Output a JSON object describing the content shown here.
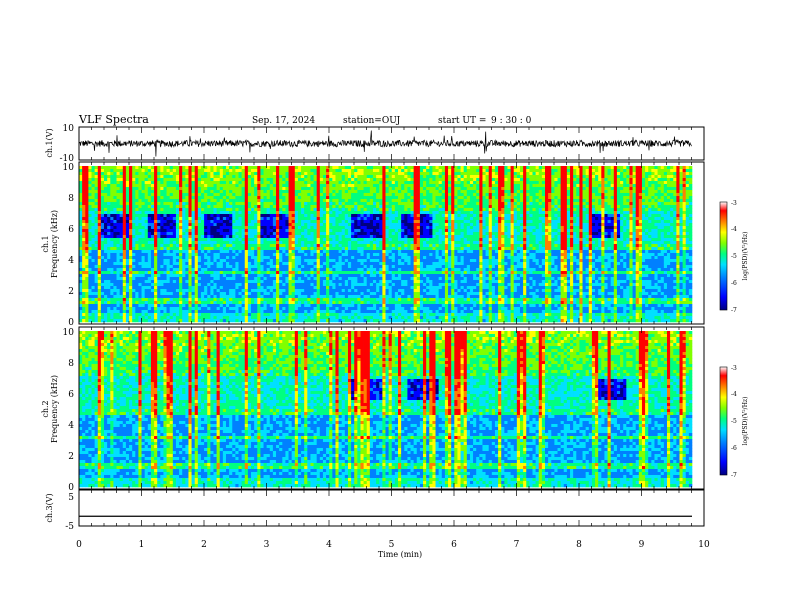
{
  "header": {
    "title": "VLF Spectra",
    "date": "Sep. 17, 2024",
    "station": "station=OUJ",
    "start_label": "start UT =",
    "start_time": "9 : 30 : 0"
  },
  "axes": {
    "x_label": "Time (min)",
    "ch1_wave_label": "ch.1(V)",
    "ch1_spec_label_a": "ch.1",
    "ch1_spec_label_b": "Frequency (kHz)",
    "ch2_spec_label_a": "ch.2",
    "ch2_spec_label_b": "Frequency (kHz)",
    "ch3_wave_label": "ch.3(V)",
    "colorbar_label": "log(PSD)(V²/Hz)"
  },
  "chart_data": [
    {
      "type": "line",
      "name": "ch1-waveform",
      "xlim": [
        0,
        10
      ],
      "ylim": [
        -10,
        10
      ],
      "x_ticks": [
        "0",
        "1",
        "2",
        "3",
        "4",
        "5",
        "6",
        "7",
        "8",
        "9",
        "10"
      ],
      "y_ticks": [
        "10",
        "-10"
      ],
      "baseline": 0,
      "noise_amplitude": 2
    },
    {
      "type": "heatmap",
      "name": "ch1-spectrogram",
      "xlim": [
        0,
        9.8
      ],
      "ylim": [
        0,
        10
      ],
      "y_ticks": [
        "0",
        "2",
        "4",
        "6",
        "8",
        "10"
      ],
      "colorbar": {
        "min": -7,
        "max": -3,
        "ticks": [
          "-3",
          "-4",
          "-5",
          "-6",
          "-7"
        ]
      },
      "dark_band_khz": [
        5.3,
        7.0
      ],
      "dark_band_times_min": [
        0.6,
        1.3,
        2.2,
        3.1,
        4.6,
        5.4,
        8.4
      ]
    },
    {
      "type": "heatmap",
      "name": "ch2-spectrogram",
      "xlim": [
        0,
        9.8
      ],
      "ylim": [
        0,
        10
      ],
      "y_ticks": [
        "0",
        "2",
        "4",
        "6",
        "8",
        "10"
      ],
      "colorbar": {
        "min": -7,
        "max": -3,
        "ticks": [
          "-3",
          "-4",
          "-5",
          "-6",
          "-7"
        ]
      },
      "dark_band_khz": [
        5.5,
        7.0
      ],
      "dark_band_times_min": [
        4.6,
        5.5,
        8.5
      ]
    },
    {
      "type": "line",
      "name": "ch3-waveform",
      "xlim": [
        0,
        10
      ],
      "ylim": [
        -5,
        5
      ],
      "y_ticks": [
        "5",
        "-5"
      ],
      "baseline": -2.3
    }
  ],
  "colors": {
    "colormap": [
      "#000080",
      "#0000ff",
      "#0080ff",
      "#00e0ff",
      "#00ff80",
      "#80ff00",
      "#ffff00",
      "#ff8000",
      "#ff0000",
      "#ffffff"
    ]
  }
}
